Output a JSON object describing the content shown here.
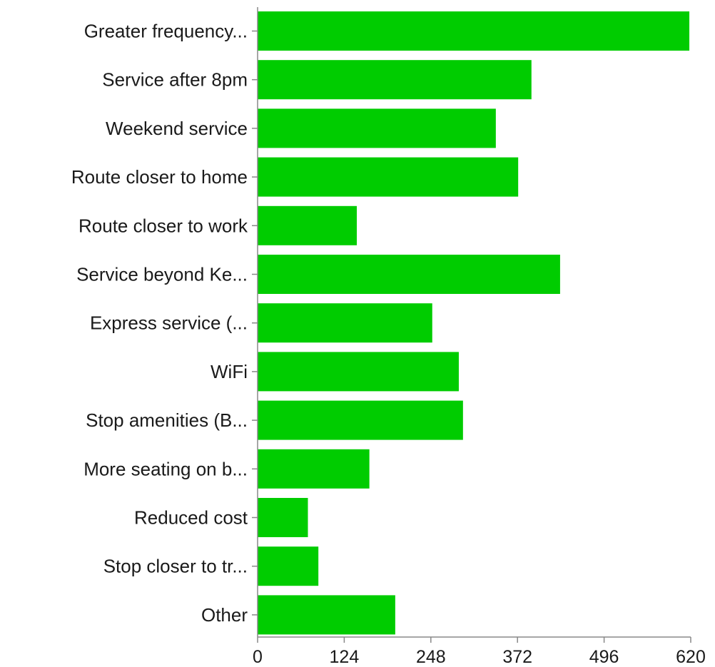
{
  "chart_data": {
    "type": "bar",
    "orientation": "horizontal",
    "categories": [
      "Greater frequency...",
      "Service after 8pm",
      "Weekend service",
      "Route closer to home",
      "Route closer to work",
      "Service beyond Ke...",
      "Express service (...",
      "WiFi",
      "Stop amenities (B...",
      "More seating on b...",
      "Reduced cost",
      "Stop closer to tr...",
      "Other"
    ],
    "values": [
      618,
      392,
      341,
      373,
      142,
      433,
      250,
      288,
      294,
      160,
      72,
      87,
      197
    ],
    "xlim": [
      0,
      620
    ],
    "xticks": [
      "0",
      "124",
      "248",
      "372",
      "496",
      "620"
    ],
    "title": "",
    "xlabel": "",
    "ylabel": "",
    "grid": false,
    "bar_color": "#00cc00"
  }
}
